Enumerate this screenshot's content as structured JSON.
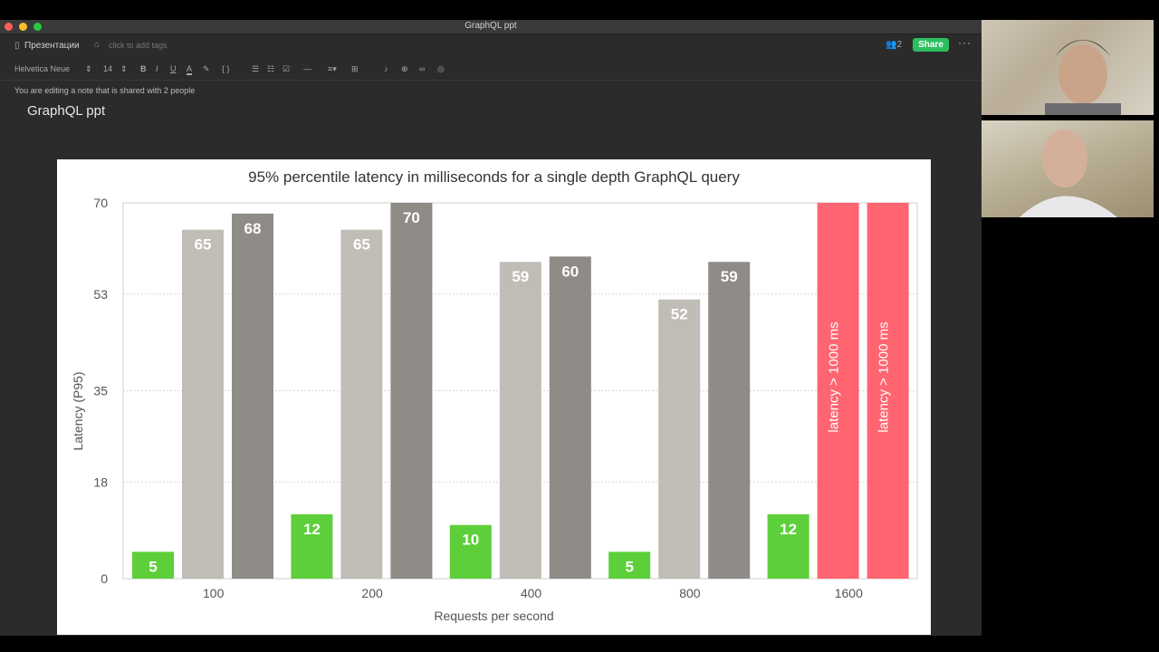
{
  "window": {
    "title": "GraphQL ppt"
  },
  "notebar": {
    "notebook": "Презентации",
    "tags_placeholder": "click to add tags",
    "people_count": "2",
    "share_label": "Share",
    "more": "···"
  },
  "toolbar": {
    "font": "Helvetica Neue",
    "size": "14",
    "bold": "B",
    "italic": "I",
    "underline": "U",
    "color": "A",
    "code": "{ }",
    "divider": "—"
  },
  "note": {
    "shared_message": "You are editing a note that is shared with 2 people",
    "title": "GraphQL ppt"
  },
  "colors": {
    "green": "#5dcf3a",
    "light_gray": "#c0bcb6",
    "dark_gray": "#8f8b86",
    "red": "#ff6570",
    "share": "#2dbe60"
  },
  "chart_data": {
    "type": "bar",
    "title": "95% percentile latency in milliseconds for a single depth GraphQL query",
    "xlabel": "Requests per second",
    "ylabel": "Latency (P95)",
    "categories": [
      "100",
      "200",
      "400",
      "800",
      "1600"
    ],
    "ylim": [
      0,
      70
    ],
    "yticks": [
      "0",
      "18",
      "35",
      "53",
      "70"
    ],
    "grid": true,
    "series": [
      {
        "values": [
          5,
          12,
          10,
          5,
          12
        ],
        "labels": [
          "5",
          "12",
          "10",
          "5",
          "12"
        ]
      },
      {
        "values": [
          65,
          65,
          59,
          52,
          70
        ],
        "labels": [
          "65",
          "65",
          "59",
          "52",
          "latency > 1000 ms"
        ]
      },
      {
        "values": [
          68,
          70,
          60,
          59,
          70
        ],
        "labels": [
          "68",
          "70",
          "60",
          "59",
          "latency > 1000 ms"
        ]
      }
    ]
  }
}
